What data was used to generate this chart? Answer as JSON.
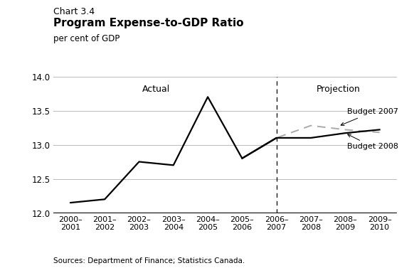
{
  "chart_label": "Chart 3.4",
  "title": "Program Expense-to-GDP Ratio",
  "ylabel": "per cent of GDP",
  "source": "Sources: Department of Finance; Statistics Canada.",
  "xlim": [
    -0.5,
    9.5
  ],
  "ylim": [
    12.0,
    14.0
  ],
  "yticks": [
    12.0,
    12.5,
    13.0,
    13.5,
    14.0
  ],
  "xtick_labels": [
    "2000–\n2001",
    "2001–\n2002",
    "2002–\n2003",
    "2003–\n2004",
    "2004–\n2005",
    "2005–\n2006",
    "2006–\n2007",
    "2007–\n2008",
    "2008–\n2009",
    "2009–\n2010"
  ],
  "actual_x": [
    0,
    1,
    2,
    3,
    4,
    5,
    6
  ],
  "actual_y": [
    12.15,
    12.2,
    12.75,
    12.7,
    13.7,
    12.8,
    13.1
  ],
  "budget2007_x": [
    5,
    6,
    7,
    8,
    9
  ],
  "budget2007_y": [
    12.8,
    13.1,
    13.28,
    13.22,
    13.18
  ],
  "budget2008_x": [
    5,
    6,
    7,
    8,
    9
  ],
  "budget2008_y": [
    12.8,
    13.1,
    13.1,
    13.17,
    13.22
  ],
  "dashed_line_x": 6,
  "actual_label": "Actual",
  "projection_label": "Projection",
  "budget2007_label": "Budget 2007",
  "budget2008_label": "Budget 2008",
  "line_color": "#000000",
  "dashed_color": "#aaaaaa",
  "background_color": "#ffffff",
  "grid_color": "#bbbbbb"
}
